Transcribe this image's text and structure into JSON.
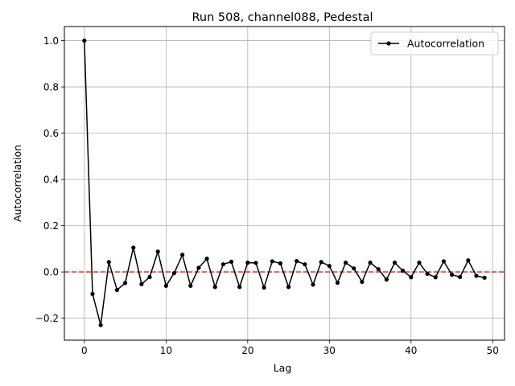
{
  "chart_data": {
    "type": "line",
    "title": "Run 508, channel088, Pedestal",
    "xlabel": "Lag",
    "ylabel": "Autocorrelation",
    "xlim": [
      -2.45,
      51.45
    ],
    "ylim": [
      -0.295,
      1.061
    ],
    "xticks": [
      0,
      10,
      20,
      30,
      40,
      50
    ],
    "yticks": [
      -0.2,
      0.0,
      0.2,
      0.4,
      0.6,
      0.8,
      1.0
    ],
    "xtick_labels": [
      "0",
      "10",
      "20",
      "30",
      "40",
      "50"
    ],
    "ytick_labels": [
      "−0.2",
      "0.0",
      "0.2",
      "0.4",
      "0.6",
      "0.8",
      "1.0"
    ],
    "grid": true,
    "legend_position": "top-right",
    "reference_line": {
      "y": 0,
      "style": "dashed",
      "color": "#e41a1c"
    },
    "series": [
      {
        "name": "Autocorrelation",
        "color": "#000000",
        "marker": "dot",
        "x": [
          0,
          1,
          2,
          3,
          4,
          5,
          6,
          7,
          8,
          9,
          10,
          11,
          12,
          13,
          14,
          15,
          16,
          17,
          18,
          19,
          20,
          21,
          22,
          23,
          24,
          25,
          26,
          27,
          28,
          29,
          30,
          31,
          32,
          33,
          34,
          35,
          36,
          37,
          38,
          39,
          40,
          41,
          42,
          43,
          44,
          45,
          46,
          47,
          48,
          49
        ],
        "y": [
          1.0,
          -0.095,
          -0.23,
          0.043,
          -0.078,
          -0.048,
          0.105,
          -0.053,
          -0.022,
          0.088,
          -0.06,
          -0.005,
          0.074,
          -0.06,
          0.018,
          0.057,
          -0.065,
          0.033,
          0.044,
          -0.065,
          0.04,
          0.039,
          -0.068,
          0.046,
          0.037,
          -0.065,
          0.047,
          0.033,
          -0.055,
          0.043,
          0.026,
          -0.047,
          0.04,
          0.015,
          -0.043,
          0.04,
          0.012,
          -0.033,
          0.04,
          0.005,
          -0.023,
          0.04,
          -0.008,
          -0.023,
          0.046,
          -0.012,
          -0.022,
          0.05,
          -0.017,
          -0.025
        ]
      }
    ]
  }
}
